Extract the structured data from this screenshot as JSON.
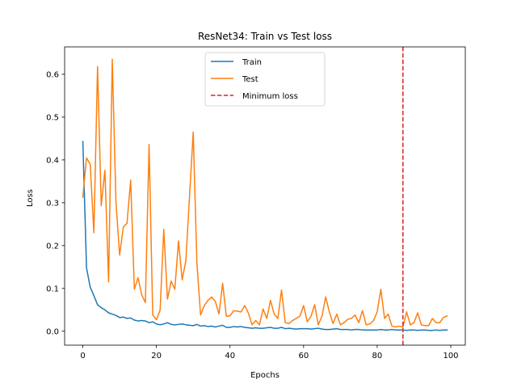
{
  "chart_data": {
    "type": "line",
    "title": "ResNet34: Train vs Test loss",
    "xlabel": "Epochs",
    "ylabel": "Loss",
    "xlim": [
      -4.95,
      103.95
    ],
    "ylim": [
      -0.0325,
      0.664
    ],
    "xticks": [
      0,
      20,
      40,
      60,
      80,
      100
    ],
    "yticks": [
      0.0,
      0.1,
      0.2,
      0.3,
      0.4,
      0.5,
      0.6
    ],
    "ytick_labels": [
      "0.0",
      "0.1",
      "0.2",
      "0.3",
      "0.4",
      "0.5",
      "0.6"
    ],
    "grid": false,
    "legend": {
      "placement": "upper-center",
      "entries": [
        {
          "label": "Train",
          "color": "#1f77b4",
          "style": "solid"
        },
        {
          "label": "Test",
          "color": "#ff7f0e",
          "style": "solid"
        },
        {
          "label": "Minimum loss",
          "color": "#d62728",
          "style": "dashed"
        }
      ]
    },
    "vline": {
      "x": 87,
      "color": "#d62728",
      "style": "dashed",
      "label": "Minimum loss"
    },
    "series": [
      {
        "name": "Train",
        "color": "#1f77b4",
        "x": [
          0,
          1,
          2,
          3,
          4,
          5,
          6,
          7,
          8,
          9,
          10,
          11,
          12,
          13,
          14,
          15,
          16,
          17,
          18,
          19,
          20,
          21,
          22,
          23,
          24,
          25,
          26,
          27,
          28,
          29,
          30,
          31,
          32,
          33,
          34,
          35,
          36,
          37,
          38,
          39,
          40,
          41,
          42,
          43,
          44,
          45,
          46,
          47,
          48,
          49,
          50,
          51,
          52,
          53,
          54,
          55,
          56,
          57,
          58,
          59,
          60,
          61,
          62,
          63,
          64,
          65,
          66,
          67,
          68,
          69,
          70,
          71,
          72,
          73,
          74,
          75,
          76,
          77,
          78,
          79,
          80,
          81,
          82,
          83,
          84,
          85,
          86,
          87,
          88,
          89,
          90,
          91,
          92,
          93,
          94,
          95,
          96,
          97,
          98,
          99
        ],
        "y": [
          0.443,
          0.148,
          0.103,
          0.083,
          0.062,
          0.055,
          0.05,
          0.043,
          0.04,
          0.037,
          0.032,
          0.033,
          0.03,
          0.031,
          0.026,
          0.024,
          0.025,
          0.024,
          0.02,
          0.022,
          0.017,
          0.015,
          0.017,
          0.02,
          0.016,
          0.015,
          0.016,
          0.017,
          0.015,
          0.014,
          0.013,
          0.016,
          0.012,
          0.013,
          0.011,
          0.012,
          0.01,
          0.012,
          0.014,
          0.009,
          0.009,
          0.011,
          0.01,
          0.011,
          0.009,
          0.008,
          0.007,
          0.008,
          0.007,
          0.007,
          0.008,
          0.009,
          0.007,
          0.007,
          0.009,
          0.006,
          0.007,
          0.006,
          0.005,
          0.006,
          0.006,
          0.006,
          0.005,
          0.006,
          0.007,
          0.005,
          0.004,
          0.004,
          0.005,
          0.006,
          0.004,
          0.004,
          0.004,
          0.003,
          0.004,
          0.004,
          0.003,
          0.003,
          0.003,
          0.003,
          0.003,
          0.004,
          0.003,
          0.003,
          0.004,
          0.003,
          0.003,
          0.003,
          0.002,
          0.003,
          0.003,
          0.002,
          0.003,
          0.003,
          0.002,
          0.002,
          0.003,
          0.002,
          0.003,
          0.003
        ]
      },
      {
        "name": "Test",
        "color": "#ff7f0e",
        "x": [
          0,
          1,
          2,
          3,
          4,
          5,
          6,
          7,
          8,
          9,
          10,
          11,
          12,
          13,
          14,
          15,
          16,
          17,
          18,
          19,
          20,
          21,
          22,
          23,
          24,
          25,
          26,
          27,
          28,
          29,
          30,
          31,
          32,
          33,
          34,
          35,
          36,
          37,
          38,
          39,
          40,
          41,
          42,
          43,
          44,
          45,
          46,
          47,
          48,
          49,
          50,
          51,
          52,
          53,
          54,
          55,
          56,
          57,
          58,
          59,
          60,
          61,
          62,
          63,
          64,
          65,
          66,
          67,
          68,
          69,
          70,
          71,
          72,
          73,
          74,
          75,
          76,
          77,
          78,
          79,
          80,
          81,
          82,
          83,
          84,
          85,
          86,
          87,
          88,
          89,
          90,
          91,
          92,
          93,
          94,
          95,
          96,
          97,
          98,
          99
        ],
        "y": [
          0.313,
          0.405,
          0.39,
          0.23,
          0.618,
          0.293,
          0.376,
          0.115,
          0.635,
          0.302,
          0.178,
          0.243,
          0.252,
          0.353,
          0.098,
          0.125,
          0.085,
          0.067,
          0.436,
          0.038,
          0.027,
          0.049,
          0.238,
          0.075,
          0.117,
          0.098,
          0.211,
          0.12,
          0.165,
          0.315,
          0.465,
          0.16,
          0.038,
          0.06,
          0.072,
          0.08,
          0.07,
          0.04,
          0.112,
          0.035,
          0.036,
          0.048,
          0.047,
          0.045,
          0.06,
          0.042,
          0.015,
          0.025,
          0.015,
          0.052,
          0.03,
          0.072,
          0.04,
          0.03,
          0.096,
          0.02,
          0.018,
          0.025,
          0.03,
          0.035,
          0.06,
          0.022,
          0.035,
          0.062,
          0.015,
          0.035,
          0.08,
          0.045,
          0.018,
          0.04,
          0.015,
          0.02,
          0.028,
          0.03,
          0.038,
          0.02,
          0.048,
          0.015,
          0.017,
          0.025,
          0.045,
          0.098,
          0.03,
          0.04,
          0.012,
          0.01,
          0.012,
          0.01,
          0.045,
          0.015,
          0.02,
          0.043,
          0.015,
          0.013,
          0.013,
          0.03,
          0.02,
          0.02,
          0.032,
          0.036
        ]
      }
    ]
  }
}
